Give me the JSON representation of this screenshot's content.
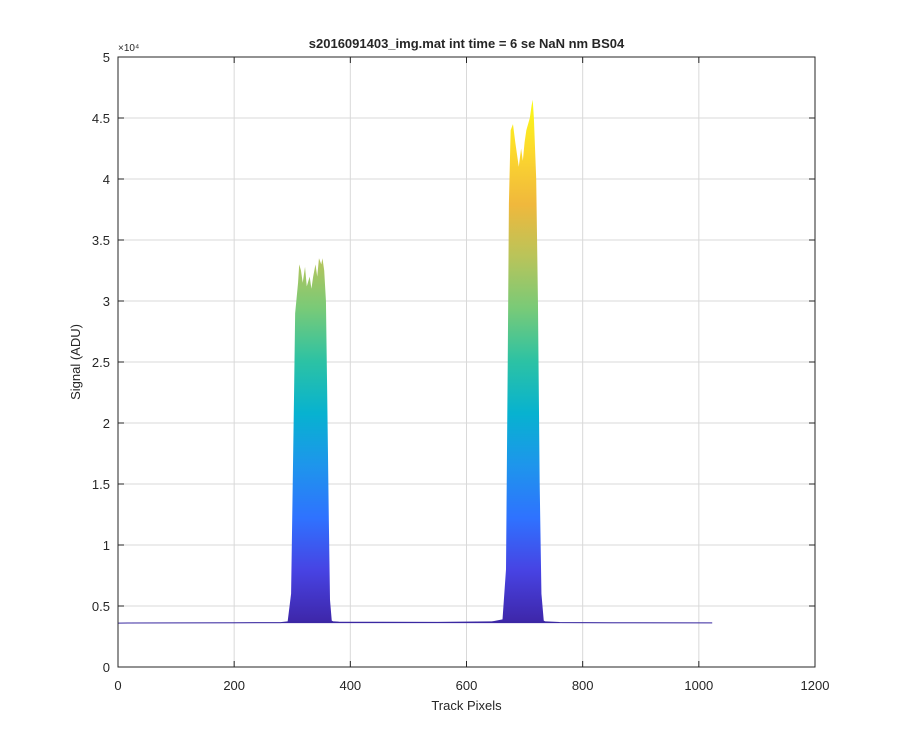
{
  "colors": {
    "background": "#ffffff",
    "axes": "#262626",
    "grid": "#d9d9d9",
    "baseline": "#3a2aa0",
    "colormap": [
      "#3e26a8",
      "#4743e3",
      "#2f72ff",
      "#1e95ec",
      "#07b2d0",
      "#2cc2a4",
      "#78ca78",
      "#b9c45a",
      "#f0b83c",
      "#fcd82e",
      "#f9fb15"
    ]
  },
  "chart_data": {
    "type": "area",
    "title": "s2016091403_img.mat int time = 6 se  NaN nm BS04",
    "xlabel": "Track Pixels",
    "ylabel": "Signal (ADU)",
    "xlim": [
      0,
      1200
    ],
    "ylim": [
      0,
      50000
    ],
    "y_exponent_label": "×10⁴",
    "xticks": [
      "0",
      "200",
      "400",
      "600",
      "800",
      "1000",
      "1200"
    ],
    "yticks": [
      "0",
      "0.5",
      "1",
      "1.5",
      "2",
      "2.5",
      "3",
      "3.5",
      "4",
      "4.5",
      "5"
    ],
    "grid": true,
    "legend": "none",
    "series": [
      {
        "x": [
          0,
          100,
          200,
          280,
          292,
          298,
          303,
          305,
          310,
          312,
          315,
          318,
          322,
          325,
          330,
          333,
          336,
          340,
          343,
          346,
          350,
          352,
          355,
          358,
          360,
          363,
          365,
          368,
          372,
          380,
          450,
          550,
          640,
          662,
          668,
          671,
          673,
          676,
          680,
          684,
          687,
          690,
          694,
          697,
          700,
          703,
          706,
          709,
          712,
          714,
          716,
          720,
          723,
          726,
          729,
          733,
          737,
          760,
          850,
          1023
        ],
        "y": [
          3600,
          3620,
          3630,
          3640,
          3700,
          6000,
          22000,
          29000,
          31500,
          33000,
          32500,
          31500,
          32800,
          31200,
          32000,
          31000,
          32000,
          33000,
          32000,
          33500,
          33000,
          33500,
          32500,
          30000,
          23000,
          12000,
          5500,
          3800,
          3700,
          3680,
          3670,
          3660,
          3700,
          3900,
          8000,
          25000,
          38000,
          44000,
          44500,
          43000,
          42000,
          41000,
          42500,
          41500,
          43000,
          44000,
          44500,
          45000,
          46000,
          46500,
          45000,
          40000,
          30000,
          15000,
          6000,
          3800,
          3700,
          3650,
          3630,
          3620
        ]
      }
    ]
  }
}
